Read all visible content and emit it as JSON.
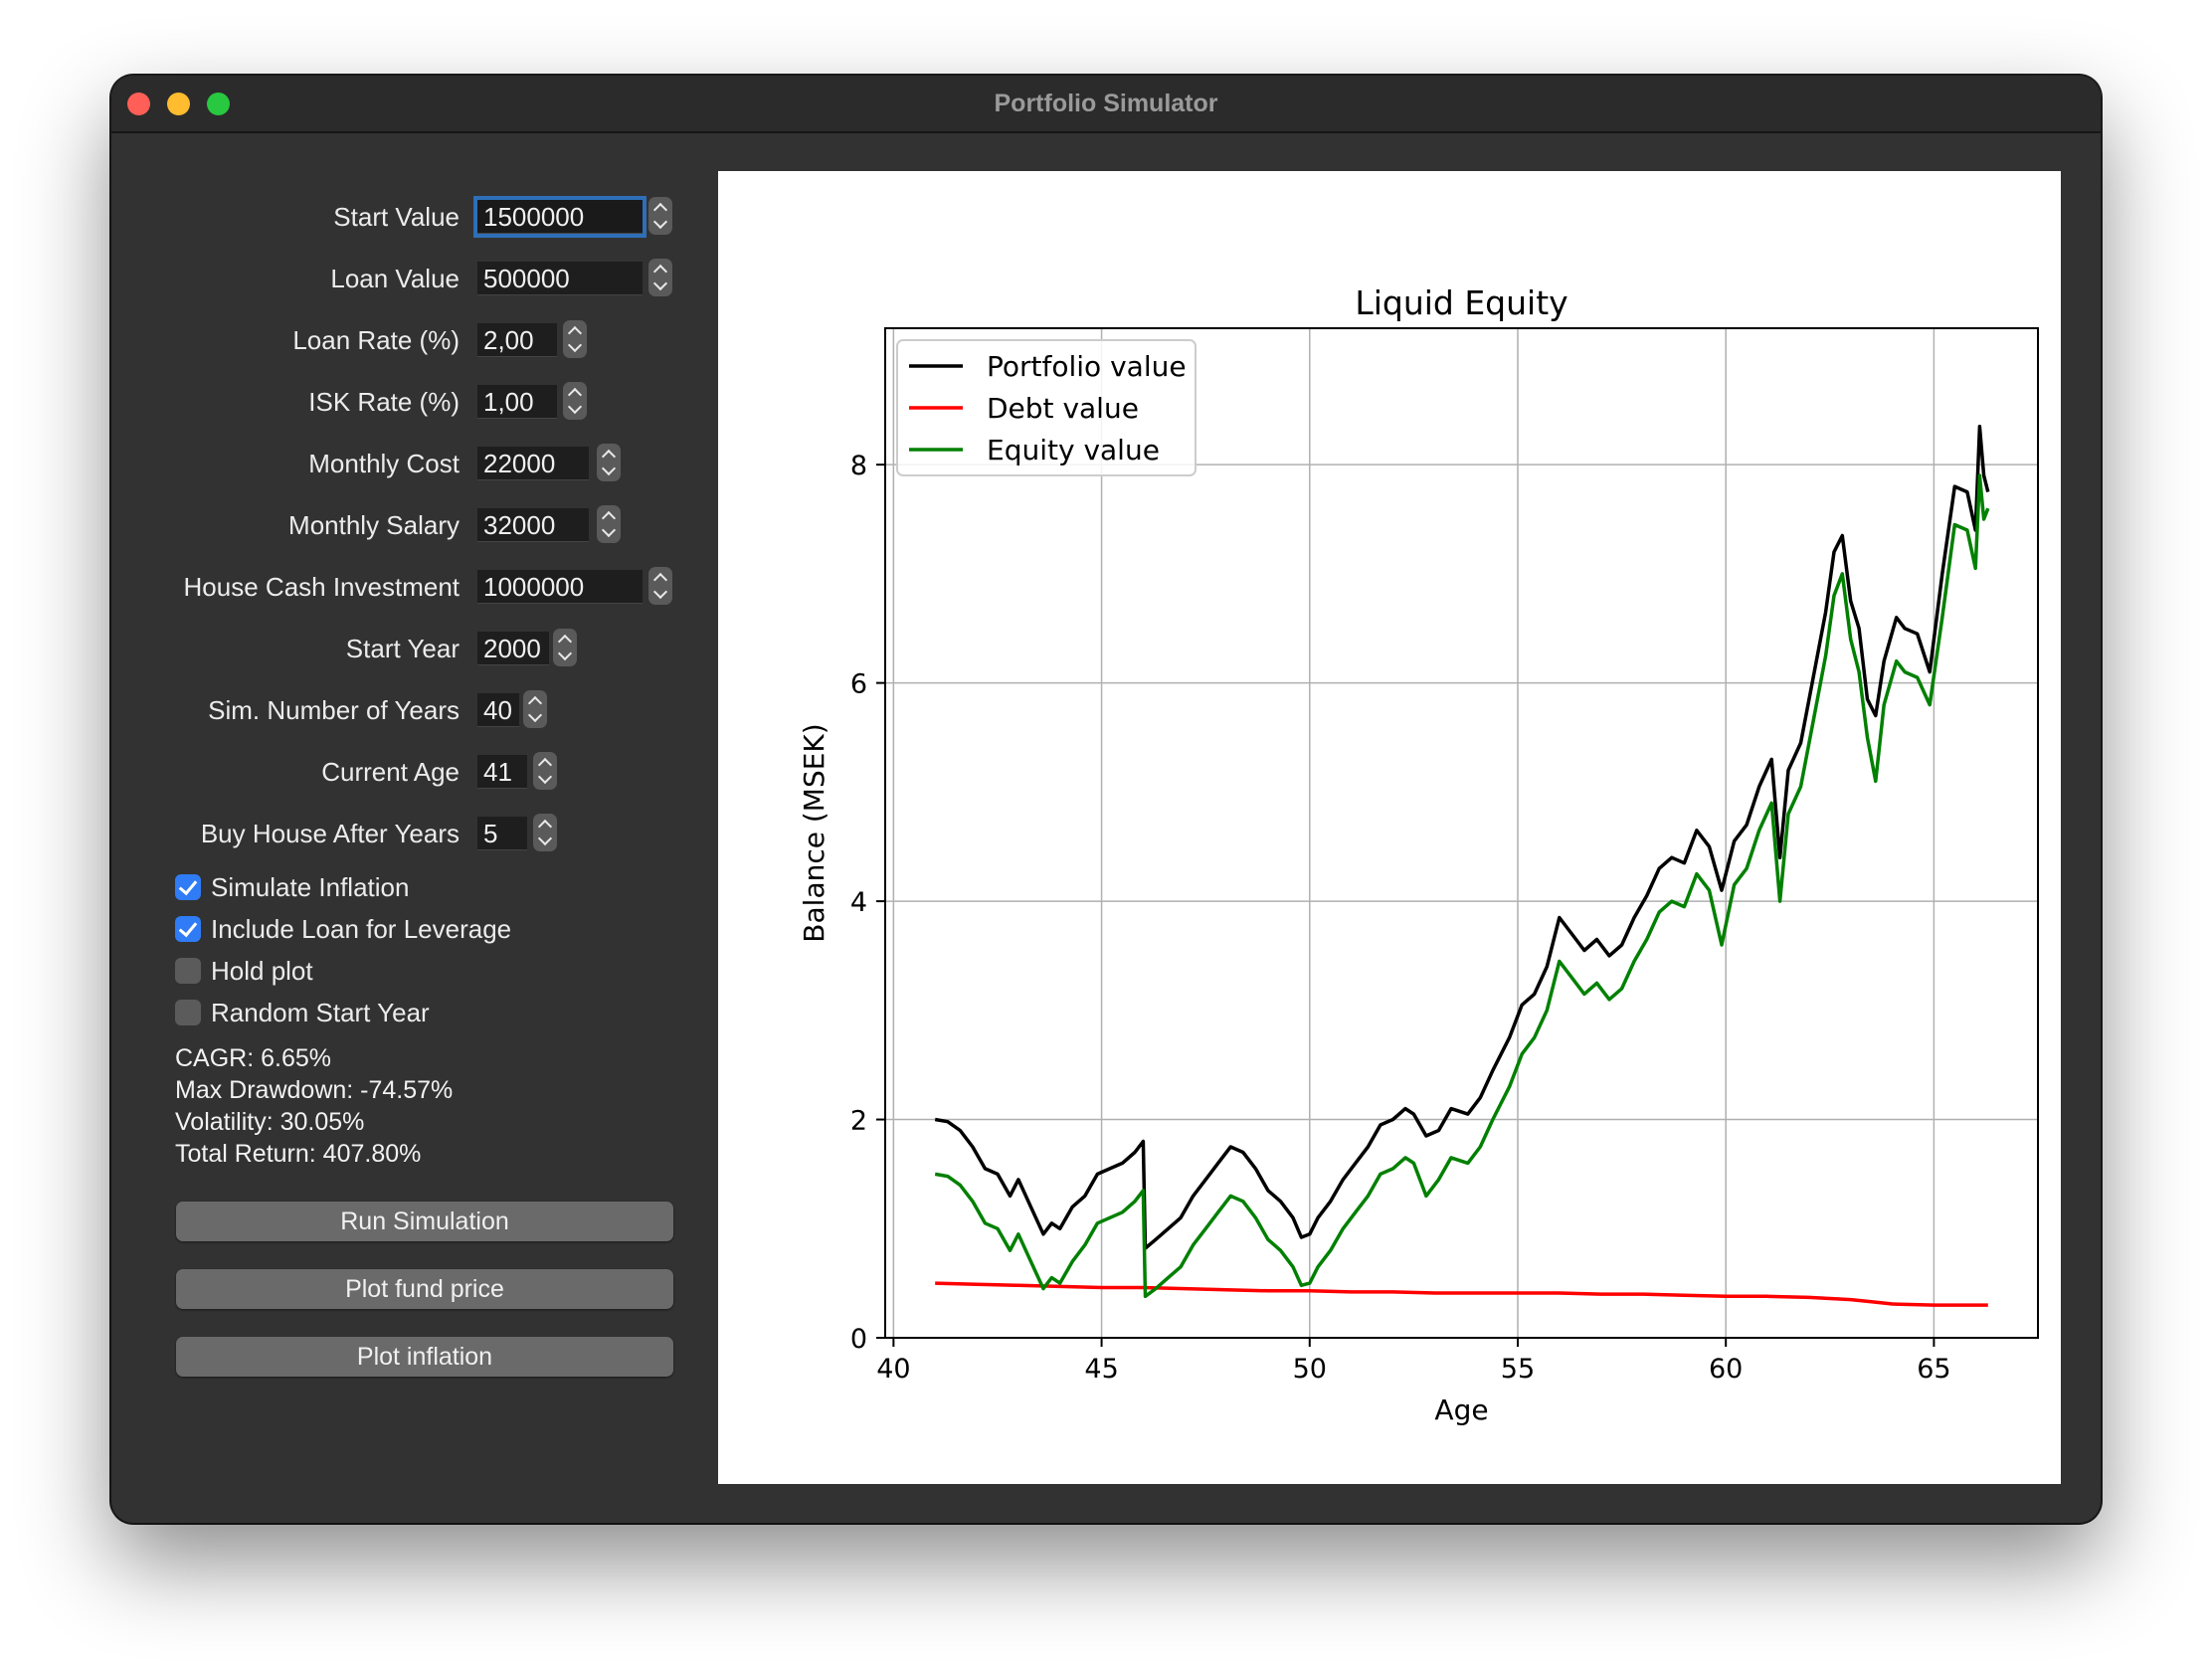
{
  "window": {
    "title": "Portfolio Simulator"
  },
  "form": {
    "fields": [
      {
        "label": "Start Value",
        "value": "1500000"
      },
      {
        "label": "Loan Value",
        "value": "500000"
      },
      {
        "label": "Loan Rate (%)",
        "value": "2,00"
      },
      {
        "label": "ISK Rate (%)",
        "value": "1,00"
      },
      {
        "label": "Monthly Cost",
        "value": "22000"
      },
      {
        "label": "Monthly Salary",
        "value": "32000"
      },
      {
        "label": "House Cash Investment",
        "value": "1000000"
      },
      {
        "label": "Start Year",
        "value": "2000"
      },
      {
        "label": "Sim. Number of Years",
        "value": "40"
      },
      {
        "label": "Current Age",
        "value": "41"
      },
      {
        "label": "Buy House After Years",
        "value": "5"
      }
    ],
    "checkboxes": [
      {
        "label": "Simulate Inflation",
        "checked": true
      },
      {
        "label": "Include Loan for Leverage",
        "checked": true
      },
      {
        "label": "Hold plot",
        "checked": false
      },
      {
        "label": "Random Start Year",
        "checked": false
      }
    ]
  },
  "stats": {
    "cagr": "CAGR: 6.65%",
    "max_drawdown": "Max Drawdown: -74.57%",
    "volatility": "Volatility: 30.05%",
    "total_return": "Total Return: 407.80%"
  },
  "buttons": {
    "run": "Run Simulation",
    "plot_fund": "Plot fund price",
    "plot_inflation": "Plot inflation"
  },
  "chart_data": {
    "type": "line",
    "title": "Liquid Equity",
    "xlabel": "Age",
    "ylabel": "Balance (MSEK)",
    "xlim": [
      39.8,
      67.5
    ],
    "ylim": [
      0,
      9.25
    ],
    "xticks": [
      40,
      45,
      50,
      55,
      60,
      65
    ],
    "yticks": [
      0,
      2,
      4,
      6,
      8
    ],
    "grid": true,
    "legend_position": "top-left",
    "series": [
      {
        "name": "Portfolio value",
        "color": "#000000",
        "points": [
          [
            41.0,
            2.0
          ],
          [
            41.3,
            1.98
          ],
          [
            41.6,
            1.9
          ],
          [
            41.9,
            1.75
          ],
          [
            42.2,
            1.55
          ],
          [
            42.5,
            1.5
          ],
          [
            42.8,
            1.3
          ],
          [
            43.0,
            1.45
          ],
          [
            43.3,
            1.2
          ],
          [
            43.6,
            0.95
          ],
          [
            43.8,
            1.05
          ],
          [
            44.0,
            1.0
          ],
          [
            44.3,
            1.2
          ],
          [
            44.6,
            1.3
          ],
          [
            44.9,
            1.5
          ],
          [
            45.2,
            1.55
          ],
          [
            45.5,
            1.6
          ],
          [
            45.8,
            1.7
          ],
          [
            46.0,
            1.8
          ],
          [
            46.05,
            0.82
          ],
          [
            46.3,
            0.9
          ],
          [
            46.6,
            1.0
          ],
          [
            46.9,
            1.1
          ],
          [
            47.2,
            1.3
          ],
          [
            47.5,
            1.45
          ],
          [
            47.8,
            1.6
          ],
          [
            48.1,
            1.75
          ],
          [
            48.4,
            1.7
          ],
          [
            48.7,
            1.55
          ],
          [
            49.0,
            1.35
          ],
          [
            49.3,
            1.25
          ],
          [
            49.6,
            1.1
          ],
          [
            49.8,
            0.92
          ],
          [
            50.0,
            0.95
          ],
          [
            50.2,
            1.1
          ],
          [
            50.5,
            1.25
          ],
          [
            50.8,
            1.45
          ],
          [
            51.1,
            1.6
          ],
          [
            51.4,
            1.75
          ],
          [
            51.7,
            1.95
          ],
          [
            52.0,
            2.0
          ],
          [
            52.3,
            2.1
          ],
          [
            52.5,
            2.05
          ],
          [
            52.8,
            1.85
          ],
          [
            53.1,
            1.9
          ],
          [
            53.4,
            2.1
          ],
          [
            53.8,
            2.05
          ],
          [
            54.1,
            2.2
          ],
          [
            54.4,
            2.45
          ],
          [
            54.8,
            2.75
          ],
          [
            55.1,
            3.05
          ],
          [
            55.4,
            3.15
          ],
          [
            55.7,
            3.4
          ],
          [
            56.0,
            3.85
          ],
          [
            56.3,
            3.7
          ],
          [
            56.6,
            3.55
          ],
          [
            56.9,
            3.65
          ],
          [
            57.2,
            3.5
          ],
          [
            57.5,
            3.6
          ],
          [
            57.8,
            3.85
          ],
          [
            58.1,
            4.05
          ],
          [
            58.4,
            4.3
          ],
          [
            58.7,
            4.4
          ],
          [
            59.0,
            4.35
          ],
          [
            59.3,
            4.65
          ],
          [
            59.6,
            4.5
          ],
          [
            59.9,
            4.1
          ],
          [
            60.2,
            4.55
          ],
          [
            60.5,
            4.7
          ],
          [
            60.8,
            5.05
          ],
          [
            61.1,
            5.3
          ],
          [
            61.3,
            4.4
          ],
          [
            61.5,
            5.2
          ],
          [
            61.8,
            5.45
          ],
          [
            62.1,
            6.05
          ],
          [
            62.4,
            6.65
          ],
          [
            62.6,
            7.2
          ],
          [
            62.8,
            7.35
          ],
          [
            63.0,
            6.75
          ],
          [
            63.2,
            6.5
          ],
          [
            63.4,
            5.85
          ],
          [
            63.6,
            5.7
          ],
          [
            63.8,
            6.2
          ],
          [
            64.1,
            6.6
          ],
          [
            64.3,
            6.5
          ],
          [
            64.6,
            6.45
          ],
          [
            64.9,
            6.1
          ],
          [
            65.2,
            7.0
          ],
          [
            65.5,
            7.8
          ],
          [
            65.8,
            7.75
          ],
          [
            66.0,
            7.4
          ],
          [
            66.1,
            8.35
          ],
          [
            66.2,
            7.9
          ],
          [
            66.3,
            7.75
          ]
        ]
      },
      {
        "name": "Debt value",
        "color": "#ff0000",
        "points": [
          [
            41.0,
            0.5
          ],
          [
            42.0,
            0.49
          ],
          [
            43.0,
            0.48
          ],
          [
            44.0,
            0.47
          ],
          [
            45.0,
            0.46
          ],
          [
            46.0,
            0.46
          ],
          [
            47.0,
            0.45
          ],
          [
            48.0,
            0.44
          ],
          [
            49.0,
            0.43
          ],
          [
            50.0,
            0.43
          ],
          [
            51.0,
            0.42
          ],
          [
            52.0,
            0.42
          ],
          [
            53.0,
            0.41
          ],
          [
            54.0,
            0.41
          ],
          [
            55.0,
            0.41
          ],
          [
            56.0,
            0.41
          ],
          [
            57.0,
            0.4
          ],
          [
            58.0,
            0.4
          ],
          [
            59.0,
            0.39
          ],
          [
            60.0,
            0.38
          ],
          [
            61.0,
            0.38
          ],
          [
            62.0,
            0.37
          ],
          [
            63.0,
            0.35
          ],
          [
            63.5,
            0.33
          ],
          [
            64.0,
            0.31
          ],
          [
            65.0,
            0.3
          ],
          [
            66.3,
            0.3
          ]
        ]
      },
      {
        "name": "Equity value",
        "color": "#008000",
        "points": [
          [
            41.0,
            1.5
          ],
          [
            41.3,
            1.48
          ],
          [
            41.6,
            1.4
          ],
          [
            41.9,
            1.25
          ],
          [
            42.2,
            1.05
          ],
          [
            42.5,
            1.0
          ],
          [
            42.8,
            0.8
          ],
          [
            43.0,
            0.95
          ],
          [
            43.3,
            0.7
          ],
          [
            43.6,
            0.45
          ],
          [
            43.8,
            0.55
          ],
          [
            44.0,
            0.5
          ],
          [
            44.3,
            0.7
          ],
          [
            44.6,
            0.85
          ],
          [
            44.9,
            1.05
          ],
          [
            45.2,
            1.1
          ],
          [
            45.5,
            1.15
          ],
          [
            45.8,
            1.25
          ],
          [
            46.0,
            1.35
          ],
          [
            46.05,
            0.38
          ],
          [
            46.3,
            0.45
          ],
          [
            46.6,
            0.55
          ],
          [
            46.9,
            0.65
          ],
          [
            47.2,
            0.85
          ],
          [
            47.5,
            1.0
          ],
          [
            47.8,
            1.15
          ],
          [
            48.1,
            1.3
          ],
          [
            48.4,
            1.25
          ],
          [
            48.7,
            1.1
          ],
          [
            49.0,
            0.9
          ],
          [
            49.3,
            0.8
          ],
          [
            49.6,
            0.65
          ],
          [
            49.8,
            0.48
          ],
          [
            50.0,
            0.5
          ],
          [
            50.2,
            0.65
          ],
          [
            50.5,
            0.8
          ],
          [
            50.8,
            1.0
          ],
          [
            51.1,
            1.15
          ],
          [
            51.4,
            1.3
          ],
          [
            51.7,
            1.5
          ],
          [
            52.0,
            1.55
          ],
          [
            52.3,
            1.65
          ],
          [
            52.5,
            1.6
          ],
          [
            52.8,
            1.3
          ],
          [
            53.1,
            1.45
          ],
          [
            53.4,
            1.65
          ],
          [
            53.8,
            1.6
          ],
          [
            54.1,
            1.75
          ],
          [
            54.4,
            2.0
          ],
          [
            54.8,
            2.3
          ],
          [
            55.1,
            2.6
          ],
          [
            55.4,
            2.75
          ],
          [
            55.7,
            3.0
          ],
          [
            56.0,
            3.45
          ],
          [
            56.3,
            3.3
          ],
          [
            56.6,
            3.15
          ],
          [
            56.9,
            3.25
          ],
          [
            57.2,
            3.1
          ],
          [
            57.5,
            3.2
          ],
          [
            57.8,
            3.45
          ],
          [
            58.1,
            3.65
          ],
          [
            58.4,
            3.9
          ],
          [
            58.7,
            4.0
          ],
          [
            59.0,
            3.95
          ],
          [
            59.3,
            4.25
          ],
          [
            59.6,
            4.1
          ],
          [
            59.9,
            3.6
          ],
          [
            60.2,
            4.15
          ],
          [
            60.5,
            4.3
          ],
          [
            60.8,
            4.65
          ],
          [
            61.1,
            4.9
          ],
          [
            61.3,
            4.0
          ],
          [
            61.5,
            4.8
          ],
          [
            61.8,
            5.05
          ],
          [
            62.1,
            5.65
          ],
          [
            62.4,
            6.25
          ],
          [
            62.6,
            6.8
          ],
          [
            62.8,
            7.0
          ],
          [
            63.0,
            6.4
          ],
          [
            63.2,
            6.1
          ],
          [
            63.4,
            5.5
          ],
          [
            63.6,
            5.1
          ],
          [
            63.8,
            5.8
          ],
          [
            64.1,
            6.2
          ],
          [
            64.3,
            6.1
          ],
          [
            64.6,
            6.05
          ],
          [
            64.9,
            5.8
          ],
          [
            65.2,
            6.6
          ],
          [
            65.5,
            7.45
          ],
          [
            65.8,
            7.4
          ],
          [
            66.0,
            7.05
          ],
          [
            66.1,
            7.9
          ],
          [
            66.2,
            7.5
          ],
          [
            66.3,
            7.6
          ]
        ]
      }
    ]
  }
}
